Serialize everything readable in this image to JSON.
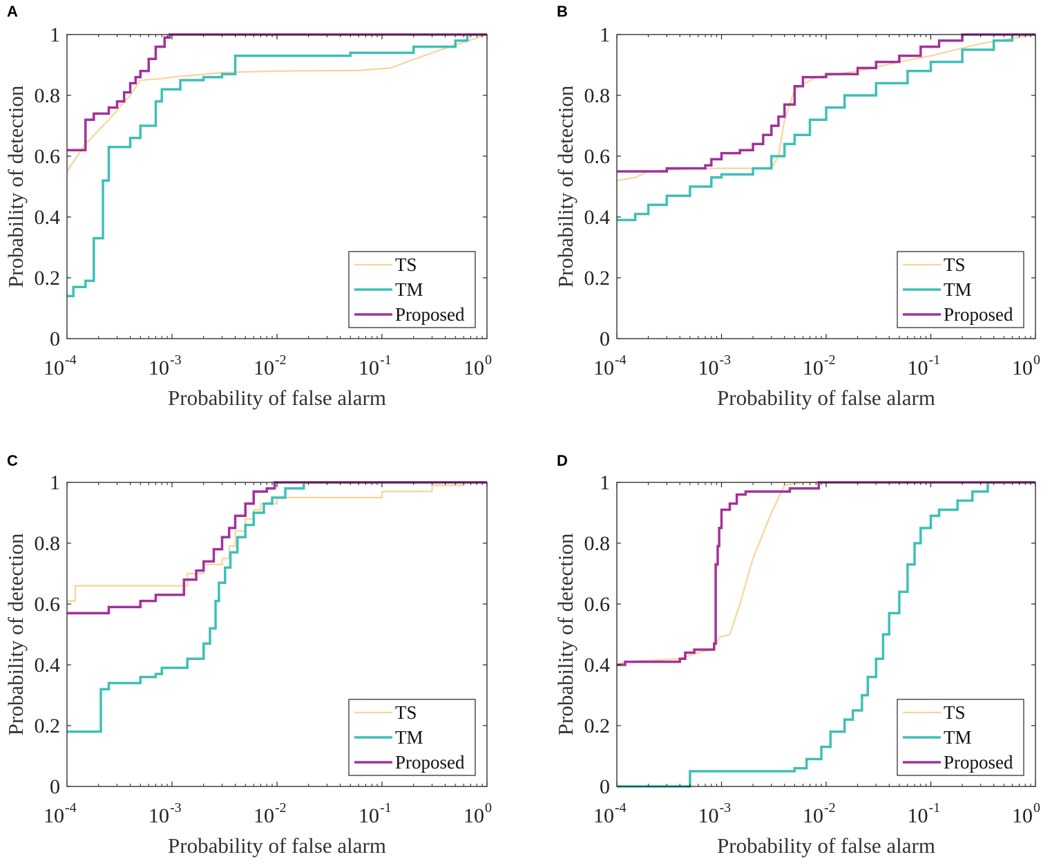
{
  "colors": {
    "ts": "#f8d49a",
    "tm": "#3fbfb8",
    "proposed": "#a3319a",
    "axis": "#222222"
  },
  "chart_data": [
    {
      "panel": "A",
      "type": "line",
      "xscale": "log",
      "xlim": [
        0.0001,
        1
      ],
      "ylim": [
        0,
        1
      ],
      "xlabel": "Probability of false alarm",
      "ylabel": "Probability of detection",
      "x_ticks": [
        {
          "base": "10",
          "exp": "-4"
        },
        {
          "base": "10",
          "exp": "-3"
        },
        {
          "base": "10",
          "exp": "-2"
        },
        {
          "base": "10",
          "exp": "-1"
        },
        {
          "base": "10",
          "exp": "0"
        }
      ],
      "y_ticks": [
        "0",
        "0.2",
        "0.4",
        "0.6",
        "0.8",
        "1"
      ],
      "legend_position": "bottom-right",
      "series": [
        {
          "name": "TS",
          "step": false,
          "points": [
            [
              0.0001,
              0.55
            ],
            [
              0.00015,
              0.64
            ],
            [
              0.00025,
              0.72
            ],
            [
              0.0004,
              0.8
            ],
            [
              0.0005,
              0.85
            ],
            [
              0.0008,
              0.855
            ],
            [
              0.001,
              0.86
            ],
            [
              0.003,
              0.875
            ],
            [
              0.01,
              0.88
            ],
            [
              0.06,
              0.882
            ],
            [
              0.12,
              0.89
            ],
            [
              0.3,
              0.94
            ],
            [
              1,
              1.0
            ]
          ]
        },
        {
          "name": "TM",
          "step": true,
          "points": [
            [
              0.0001,
              0.14
            ],
            [
              0.000115,
              0.17
            ],
            [
              0.00015,
              0.19
            ],
            [
              0.00018,
              0.33
            ],
            [
              0.00022,
              0.52
            ],
            [
              0.00025,
              0.63
            ],
            [
              0.0004,
              0.66
            ],
            [
              0.0005,
              0.7
            ],
            [
              0.0007,
              0.78
            ],
            [
              0.0008,
              0.82
            ],
            [
              0.0012,
              0.85
            ],
            [
              0.002,
              0.86
            ],
            [
              0.003,
              0.87
            ],
            [
              0.004,
              0.93
            ],
            [
              0.05,
              0.94
            ],
            [
              0.2,
              0.96
            ],
            [
              0.5,
              0.98
            ],
            [
              0.65,
              1.0
            ],
            [
              1,
              1.0
            ]
          ]
        },
        {
          "name": "Proposed",
          "step": true,
          "points": [
            [
              0.0001,
              0.62
            ],
            [
              0.00015,
              0.72
            ],
            [
              0.00018,
              0.74
            ],
            [
              0.00025,
              0.76
            ],
            [
              0.0003,
              0.78
            ],
            [
              0.00035,
              0.81
            ],
            [
              0.0004,
              0.84
            ],
            [
              0.00045,
              0.86
            ],
            [
              0.0005,
              0.88
            ],
            [
              0.0006,
              0.92
            ],
            [
              0.0007,
              0.96
            ],
            [
              0.00085,
              0.99
            ],
            [
              0.00095,
              1.0
            ],
            [
              1,
              1.0
            ]
          ]
        }
      ]
    },
    {
      "panel": "B",
      "type": "line",
      "xscale": "log",
      "xlim": [
        0.0001,
        1
      ],
      "ylim": [
        0,
        1
      ],
      "xlabel": "Probability of false alarm",
      "ylabel": "Probability of detection",
      "x_ticks": [
        {
          "base": "10",
          "exp": "-4"
        },
        {
          "base": "10",
          "exp": "-3"
        },
        {
          "base": "10",
          "exp": "-2"
        },
        {
          "base": "10",
          "exp": "-1"
        },
        {
          "base": "10",
          "exp": "0"
        }
      ],
      "y_ticks": [
        "0",
        "0.2",
        "0.4",
        "0.6",
        "0.8",
        "1"
      ],
      "legend_position": "bottom-right",
      "series": [
        {
          "name": "TS",
          "step": false,
          "points": [
            [
              0.0001,
              0.52
            ],
            [
              0.00015,
              0.53
            ],
            [
              0.0002,
              0.55
            ],
            [
              0.0005,
              0.56
            ],
            [
              0.0015,
              0.56
            ],
            [
              0.003,
              0.56
            ],
            [
              0.0035,
              0.6
            ],
            [
              0.004,
              0.72
            ],
            [
              0.0045,
              0.77
            ],
            [
              0.005,
              0.82
            ],
            [
              0.008,
              0.86
            ],
            [
              0.02,
              0.88
            ],
            [
              0.05,
              0.91
            ],
            [
              0.1,
              0.93
            ],
            [
              0.3,
              0.97
            ],
            [
              1,
              1.0
            ]
          ]
        },
        {
          "name": "TM",
          "step": true,
          "points": [
            [
              0.0001,
              0.39
            ],
            [
              0.00015,
              0.41
            ],
            [
              0.0002,
              0.44
            ],
            [
              0.0003,
              0.47
            ],
            [
              0.0005,
              0.5
            ],
            [
              0.0008,
              0.53
            ],
            [
              0.001,
              0.54
            ],
            [
              0.002,
              0.56
            ],
            [
              0.003,
              0.6
            ],
            [
              0.004,
              0.64
            ],
            [
              0.005,
              0.67
            ],
            [
              0.007,
              0.72
            ],
            [
              0.01,
              0.76
            ],
            [
              0.015,
              0.8
            ],
            [
              0.03,
              0.84
            ],
            [
              0.06,
              0.88
            ],
            [
              0.1,
              0.91
            ],
            [
              0.2,
              0.95
            ],
            [
              0.4,
              0.98
            ],
            [
              0.6,
              1.0
            ],
            [
              1,
              1.0
            ]
          ]
        },
        {
          "name": "Proposed",
          "step": true,
          "points": [
            [
              0.0001,
              0.55
            ],
            [
              0.0003,
              0.56
            ],
            [
              0.0007,
              0.57
            ],
            [
              0.0008,
              0.59
            ],
            [
              0.001,
              0.61
            ],
            [
              0.0015,
              0.62
            ],
            [
              0.002,
              0.64
            ],
            [
              0.0025,
              0.67
            ],
            [
              0.003,
              0.7
            ],
            [
              0.0035,
              0.73
            ],
            [
              0.004,
              0.77
            ],
            [
              0.005,
              0.83
            ],
            [
              0.006,
              0.86
            ],
            [
              0.01,
              0.87
            ],
            [
              0.02,
              0.89
            ],
            [
              0.03,
              0.91
            ],
            [
              0.05,
              0.93
            ],
            [
              0.08,
              0.96
            ],
            [
              0.12,
              0.98
            ],
            [
              0.2,
              1.0
            ],
            [
              1,
              1.0
            ]
          ]
        }
      ]
    },
    {
      "panel": "C",
      "type": "line",
      "xscale": "log",
      "xlim": [
        0.0001,
        1
      ],
      "ylim": [
        0,
        1
      ],
      "xlabel": "Probability of false alarm",
      "ylabel": "Probability of detection",
      "x_ticks": [
        {
          "base": "10",
          "exp": "-4"
        },
        {
          "base": "10",
          "exp": "-3"
        },
        {
          "base": "10",
          "exp": "-2"
        },
        {
          "base": "10",
          "exp": "-1"
        },
        {
          "base": "10",
          "exp": "0"
        }
      ],
      "y_ticks": [
        "0",
        "0.2",
        "0.4",
        "0.6",
        "0.8",
        "1"
      ],
      "legend_position": "bottom-right",
      "series": [
        {
          "name": "TS",
          "step": true,
          "points": [
            [
              0.0001,
              0.61
            ],
            [
              0.00012,
              0.66
            ],
            [
              0.0014,
              0.7
            ],
            [
              0.002,
              0.73
            ],
            [
              0.003,
              0.75
            ],
            [
              0.0035,
              0.79
            ],
            [
              0.004,
              0.84
            ],
            [
              0.005,
              0.88
            ],
            [
              0.006,
              0.91
            ],
            [
              0.007,
              0.93
            ],
            [
              0.01,
              0.95
            ],
            [
              0.1,
              0.97
            ],
            [
              0.3,
              0.99
            ],
            [
              0.6,
              1.0
            ],
            [
              1,
              1.0
            ]
          ]
        },
        {
          "name": "TM",
          "step": true,
          "points": [
            [
              0.0001,
              0.18
            ],
            [
              0.00021,
              0.32
            ],
            [
              0.00025,
              0.34
            ],
            [
              0.0005,
              0.36
            ],
            [
              0.0007,
              0.37
            ],
            [
              0.0008,
              0.39
            ],
            [
              0.0014,
              0.42
            ],
            [
              0.002,
              0.47
            ],
            [
              0.0023,
              0.52
            ],
            [
              0.0026,
              0.61
            ],
            [
              0.0028,
              0.67
            ],
            [
              0.0032,
              0.72
            ],
            [
              0.0036,
              0.77
            ],
            [
              0.0042,
              0.82
            ],
            [
              0.005,
              0.86
            ],
            [
              0.006,
              0.9
            ],
            [
              0.0075,
              0.93
            ],
            [
              0.009,
              0.95
            ],
            [
              0.012,
              0.98
            ],
            [
              0.018,
              1.0
            ],
            [
              1,
              1.0
            ]
          ]
        },
        {
          "name": "Proposed",
          "step": true,
          "points": [
            [
              0.0001,
              0.57
            ],
            [
              0.00025,
              0.59
            ],
            [
              0.0005,
              0.61
            ],
            [
              0.0007,
              0.63
            ],
            [
              0.0013,
              0.68
            ],
            [
              0.0017,
              0.71
            ],
            [
              0.002,
              0.74
            ],
            [
              0.0025,
              0.78
            ],
            [
              0.003,
              0.82
            ],
            [
              0.0035,
              0.85
            ],
            [
              0.004,
              0.89
            ],
            [
              0.005,
              0.93
            ],
            [
              0.006,
              0.97
            ],
            [
              0.008,
              0.98
            ],
            [
              0.0095,
              1.0
            ],
            [
              1,
              1.0
            ]
          ]
        }
      ]
    },
    {
      "panel": "D",
      "type": "line",
      "xscale": "log",
      "xlim": [
        0.0001,
        1
      ],
      "ylim": [
        0,
        1
      ],
      "xlabel": "Probability of false alarm",
      "ylabel": "Probability of detection",
      "x_ticks": [
        {
          "base": "10",
          "exp": "-4"
        },
        {
          "base": "10",
          "exp": "-3"
        },
        {
          "base": "10",
          "exp": "-2"
        },
        {
          "base": "10",
          "exp": "-1"
        },
        {
          "base": "10",
          "exp": "0"
        }
      ],
      "y_ticks": [
        "0",
        "0.2",
        "0.4",
        "0.6",
        "0.8",
        "1"
      ],
      "legend_position": "bottom-right",
      "series": [
        {
          "name": "TS",
          "step": false,
          "points": [
            [
              0.0001,
              0.4
            ],
            [
              0.00012,
              0.41
            ],
            [
              0.0004,
              0.42
            ],
            [
              0.0006,
              0.44
            ],
            [
              0.0008,
              0.45
            ],
            [
              0.0009,
              0.47
            ],
            [
              0.00095,
              0.49
            ],
            [
              0.0012,
              0.5
            ],
            [
              0.0015,
              0.6
            ],
            [
              0.002,
              0.75
            ],
            [
              0.003,
              0.9
            ],
            [
              0.004,
              0.99
            ],
            [
              0.006,
              1.0
            ],
            [
              1,
              1.0
            ]
          ]
        },
        {
          "name": "TM",
          "step": true,
          "points": [
            [
              0.0001,
              0.0
            ],
            [
              0.0005,
              0.05
            ],
            [
              0.005,
              0.06
            ],
            [
              0.0065,
              0.09
            ],
            [
              0.009,
              0.13
            ],
            [
              0.011,
              0.18
            ],
            [
              0.015,
              0.22
            ],
            [
              0.018,
              0.25
            ],
            [
              0.022,
              0.3
            ],
            [
              0.025,
              0.36
            ],
            [
              0.03,
              0.42
            ],
            [
              0.035,
              0.5
            ],
            [
              0.04,
              0.57
            ],
            [
              0.05,
              0.64
            ],
            [
              0.06,
              0.73
            ],
            [
              0.07,
              0.8
            ],
            [
              0.08,
              0.85
            ],
            [
              0.1,
              0.89
            ],
            [
              0.12,
              0.91
            ],
            [
              0.18,
              0.94
            ],
            [
              0.25,
              0.97
            ],
            [
              0.35,
              1.0
            ],
            [
              1,
              1.0
            ]
          ]
        },
        {
          "name": "Proposed",
          "step": true,
          "points": [
            [
              0.0001,
              0.4
            ],
            [
              0.00012,
              0.41
            ],
            [
              0.0004,
              0.42
            ],
            [
              0.00045,
              0.44
            ],
            [
              0.00055,
              0.45
            ],
            [
              0.00085,
              0.47
            ],
            [
              0.00088,
              0.73
            ],
            [
              0.00092,
              0.79
            ],
            [
              0.00095,
              0.85
            ],
            [
              0.001,
              0.91
            ],
            [
              0.0012,
              0.93
            ],
            [
              0.0014,
              0.96
            ],
            [
              0.0017,
              0.97
            ],
            [
              0.0045,
              0.98
            ],
            [
              0.0085,
              1.0
            ],
            [
              1,
              1.0
            ]
          ]
        }
      ]
    }
  ]
}
